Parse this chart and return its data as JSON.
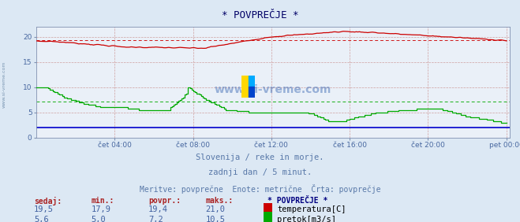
{
  "title": "* POVPREČJE *",
  "background_color": "#dce8f4",
  "plot_bg_color": "#eaf0f8",
  "grid_color": "#c8d4e4",
  "grid_color_red": "#e0b0b0",
  "x_labels": [
    "čet 04:00",
    "čet 08:00",
    "čet 12:00",
    "čet 16:00",
    "čet 20:00",
    "pet 00:00"
  ],
  "x_ticks_pos": [
    48,
    96,
    144,
    192,
    240,
    288
  ],
  "y_ticks": [
    0,
    5,
    10,
    15,
    20
  ],
  "ylim": [
    0,
    22
  ],
  "xlim": [
    0,
    290
  ],
  "subtitle1": "Slovenija / reke in morje.",
  "subtitle2": "zadnji dan / 5 minut.",
  "subtitle3": "Meritve: povprečne  Enote: metrične  Črta: povprečje",
  "subtitle_color": "#5878a8",
  "label_color": "#4868a0",
  "temp_color": "#cc0000",
  "flow_color": "#00aa00",
  "blue_line_color": "#0000cc",
  "temp_avg": 19.4,
  "flow_avg": 7.2,
  "legend_title": "* POVPREČJE *",
  "legend_title_color": "#000080",
  "table_headers": [
    "sedaj:",
    "min.:",
    "povpr.:",
    "maks.:"
  ],
  "table_header_color": "#aa2222",
  "temp_row": [
    "19,5",
    "17,9",
    "19,4",
    "21,0"
  ],
  "flow_row": [
    "5,6",
    "5,0",
    "7,2",
    "10,5"
  ],
  "temp_label": "temperatura[C]",
  "flow_label": "pretok[m3/s]",
  "table_value_color": "#4060a0",
  "n_points": 289
}
